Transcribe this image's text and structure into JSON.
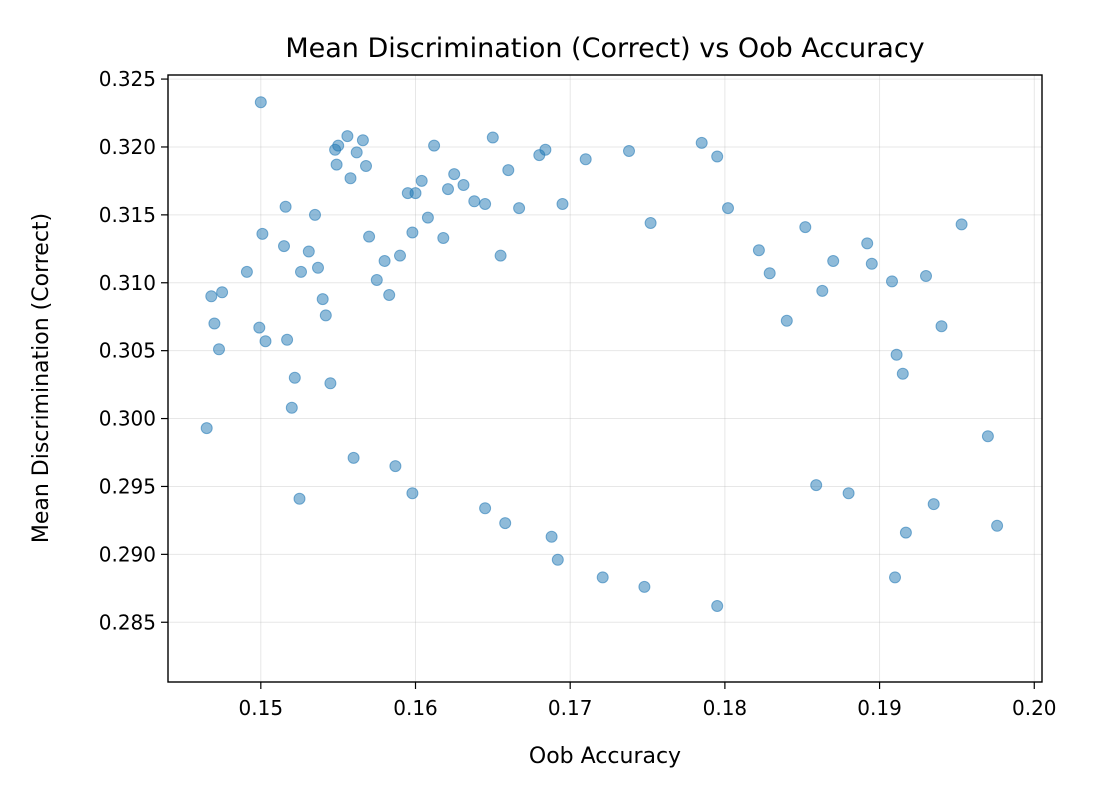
{
  "chart_data": {
    "type": "scatter",
    "title": "Mean Discrimination (Correct) vs Oob Accuracy",
    "xlabel": "Oob Accuracy",
    "ylabel": "Mean Discrimination (Correct)",
    "xlim": [
      0.144,
      0.2005
    ],
    "ylim": [
      0.2806,
      0.3253
    ],
    "xticks": [
      "0.15",
      "0.16",
      "0.17",
      "0.18",
      "0.19",
      "0.20"
    ],
    "yticks": [
      "0.285",
      "0.290",
      "0.295",
      "0.300",
      "0.305",
      "0.310",
      "0.315",
      "0.320",
      "0.325"
    ],
    "grid": true,
    "legend": "none",
    "marker_color": "#1f77b4",
    "marker_alpha": 0.5,
    "series": [
      {
        "x": [
          0.15,
          0.1465,
          0.1475,
          0.147,
          0.1468,
          0.1473,
          0.1491,
          0.1499,
          0.1501,
          0.1503,
          0.1515,
          0.1516,
          0.1517,
          0.152,
          0.1522,
          0.1526,
          0.1525,
          0.1531,
          0.1535,
          0.1537,
          0.154,
          0.1542,
          0.1545,
          0.1548,
          0.155,
          0.1549,
          0.1556,
          0.1558,
          0.1562,
          0.1566,
          0.1568,
          0.157,
          0.1575,
          0.158,
          0.1583,
          0.1587,
          0.159,
          0.1595,
          0.1598,
          0.16,
          0.1604,
          0.1608,
          0.1612,
          0.1618,
          0.1621,
          0.1625,
          0.1631,
          0.1638,
          0.1645,
          0.165,
          0.1655,
          0.166,
          0.1667,
          0.168,
          0.1684,
          0.1695,
          0.171,
          0.1738,
          0.1752,
          0.1785,
          0.1795,
          0.1802,
          0.1822,
          0.1829,
          0.184,
          0.1852,
          0.1863,
          0.187,
          0.1892,
          0.1895,
          0.1908,
          0.1911,
          0.1915,
          0.193,
          0.194,
          0.1953,
          0.197,
          0.1976,
          0.1935,
          0.1917,
          0.191,
          0.188,
          0.1859,
          0.1795,
          0.1748,
          0.1721,
          0.1692,
          0.1688,
          0.1658,
          0.1645,
          0.1598,
          0.156
        ],
        "y": [
          0.3233,
          0.2993,
          0.3093,
          0.307,
          0.309,
          0.3051,
          0.3108,
          0.3067,
          0.3136,
          0.3057,
          0.3127,
          0.3156,
          0.3058,
          0.3008,
          0.303,
          0.3108,
          0.2941,
          0.3123,
          0.315,
          0.3111,
          0.3088,
          0.3076,
          0.3026,
          0.3198,
          0.3201,
          0.3187,
          0.3208,
          0.3177,
          0.3196,
          0.3205,
          0.3186,
          0.3134,
          0.3102,
          0.3116,
          0.3091,
          0.2965,
          0.312,
          0.3166,
          0.3137,
          0.3166,
          0.3175,
          0.3148,
          0.3201,
          0.3133,
          0.3169,
          0.318,
          0.3172,
          0.316,
          0.3158,
          0.3207,
          0.312,
          0.3183,
          0.3155,
          0.3194,
          0.3198,
          0.3158,
          0.3191,
          0.3197,
          0.3144,
          0.3203,
          0.3193,
          0.3155,
          0.3124,
          0.3107,
          0.3072,
          0.3141,
          0.3094,
          0.3116,
          0.3129,
          0.3114,
          0.3101,
          0.3047,
          0.3033,
          0.3105,
          0.3068,
          0.3143,
          0.2987,
          0.2921,
          0.2937,
          0.2916,
          0.2883,
          0.2945,
          0.2951,
          0.2862,
          0.2876,
          0.2883,
          0.2896,
          0.2913,
          0.2923,
          0.2934,
          0.2945,
          0.2971
        ]
      }
    ]
  }
}
